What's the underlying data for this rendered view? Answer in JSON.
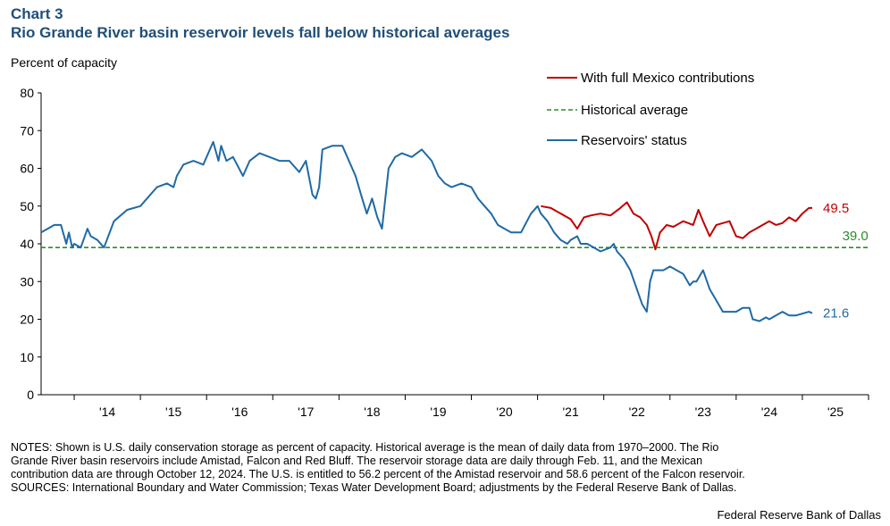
{
  "header": {
    "chart_number": "Chart 3",
    "title": "Rio Grande River basin reservoir levels fall below historical averages"
  },
  "chart_data": {
    "type": "line",
    "ylabel": "Percent of capacity",
    "ylim": [
      0,
      80
    ],
    "yticks": [
      0,
      10,
      20,
      30,
      40,
      50,
      60,
      70,
      80
    ],
    "xlim": [
      2013.0,
      2025.5
    ],
    "xtick_labels": [
      "'14",
      "'15",
      "'16",
      "'17",
      "'18",
      "'19",
      "'20",
      "'21",
      "'22",
      "'23",
      "'24",
      "'25"
    ],
    "grid": false,
    "legend_placement": "top-right",
    "series": [
      {
        "name": "With full Mexico contributions",
        "color": "#c00000",
        "style": "solid",
        "end_label": "49.5",
        "x": [
          2020.55,
          2020.7,
          2020.8,
          2020.9,
          2021.0,
          2021.1,
          2021.2,
          2021.3,
          2021.45,
          2021.6,
          2021.75,
          2021.85,
          2021.95,
          2022.05,
          2022.15,
          2022.22,
          2022.28,
          2022.35,
          2022.45,
          2022.55,
          2022.7,
          2022.85,
          2022.93,
          2023.0,
          2023.1,
          2023.2,
          2023.3,
          2023.4,
          2023.5,
          2023.6,
          2023.7,
          2023.8,
          2023.9,
          2024.0,
          2024.1,
          2024.2,
          2024.3,
          2024.4,
          2024.5,
          2024.6,
          2024.65
        ],
        "y": [
          50,
          49.5,
          48.5,
          47.5,
          46.5,
          44,
          47,
          47.5,
          48,
          47.5,
          49.5,
          51,
          48,
          47,
          45,
          42,
          38.5,
          43,
          45,
          44.5,
          46,
          45,
          49,
          46,
          42,
          45,
          45.5,
          46,
          42,
          41.5,
          43,
          44,
          45,
          46,
          45,
          45.5,
          47,
          46,
          48,
          49.5,
          49.5
        ]
      },
      {
        "name": "Historical average",
        "color": "#2e8b2e",
        "style": "dashed",
        "end_label": "39.0",
        "x": [
          2013.0,
          2025.5
        ],
        "y": [
          39.0,
          39.0
        ]
      },
      {
        "name": "Reservoirs' status",
        "color": "#1f6aa5",
        "style": "solid",
        "end_label": "21.6",
        "x": [
          2013.0,
          2013.1,
          2013.2,
          2013.3,
          2013.38,
          2013.42,
          2013.47,
          2013.5,
          2013.6,
          2013.7,
          2013.75,
          2013.85,
          2013.95,
          2014.1,
          2014.3,
          2014.5,
          2014.6,
          2014.75,
          2014.9,
          2015.0,
          2015.05,
          2015.15,
          2015.3,
          2015.45,
          2015.6,
          2015.68,
          2015.72,
          2015.8,
          2015.9,
          2016.05,
          2016.15,
          2016.3,
          2016.45,
          2016.6,
          2016.75,
          2016.9,
          2017.0,
          2017.1,
          2017.15,
          2017.2,
          2017.25,
          2017.4,
          2017.55,
          2017.65,
          2017.75,
          2017.85,
          2017.92,
          2018.0,
          2018.08,
          2018.15,
          2018.25,
          2018.35,
          2018.45,
          2018.6,
          2018.75,
          2018.9,
          2019.0,
          2019.1,
          2019.2,
          2019.35,
          2019.5,
          2019.6,
          2019.7,
          2019.8,
          2019.9,
          2020.0,
          2020.1,
          2020.25,
          2020.4,
          2020.5,
          2020.55,
          2020.65,
          2020.75,
          2020.85,
          2020.95,
          2021.0,
          2021.1,
          2021.15,
          2021.25,
          2021.35,
          2021.45,
          2021.6,
          2021.65,
          2021.7,
          2021.8,
          2021.9,
          2022.0,
          2022.08,
          2022.15,
          2022.2,
          2022.25,
          2022.3,
          2022.4,
          2022.5,
          2022.6,
          2022.7,
          2022.8,
          2022.85,
          2022.9,
          2023.0,
          2023.1,
          2023.2,
          2023.3,
          2023.4,
          2023.5,
          2023.6,
          2023.7,
          2023.75,
          2023.85,
          2023.95,
          2024.0,
          2024.1,
          2024.2,
          2024.3,
          2024.4,
          2024.5,
          2024.6,
          2024.65
        ],
        "y": [
          43,
          44,
          45,
          45,
          40,
          43,
          39,
          40,
          39,
          44,
          42,
          41,
          39,
          46,
          49,
          50,
          52,
          55,
          56,
          55,
          58,
          61,
          62,
          61,
          67,
          62,
          66,
          62,
          63,
          58,
          62,
          64,
          63,
          62,
          62,
          59,
          62,
          53,
          52,
          55,
          65,
          66,
          66,
          62,
          58,
          52,
          48,
          52,
          47,
          44,
          60,
          63,
          64,
          63,
          65,
          62,
          58,
          56,
          55,
          56,
          55,
          52,
          50,
          48,
          45,
          44,
          43,
          43,
          48,
          50,
          48,
          46,
          43,
          41,
          40,
          41,
          42,
          40,
          40,
          39,
          38,
          39,
          40,
          38,
          36,
          33,
          28,
          24,
          22,
          30,
          33,
          33,
          33,
          34,
          33,
          32,
          29,
          30,
          30,
          33,
          28,
          25,
          22,
          22,
          22,
          23,
          23,
          20,
          19.5,
          20.5,
          20,
          21,
          22,
          21,
          21,
          21.5,
          22,
          21.6
        ]
      }
    ]
  },
  "notes": {
    "lines": [
      "NOTES: Shown is U.S. daily conservation storage as percent of capacity. Historical average is the mean of daily data from 1970–2000. The Rio",
      "Grande River basin reservoirs include Amistad, Falcon and Red Bluff. The reservoir storage data are daily through Feb. 11, and the Mexican",
      "contribution data are through October 12, 2024. The U.S. is entitled to 56.2 percent of the Amistad reservoir and 58.6 percent of the Falcon reservoir.",
      "SOURCES: International Boundary and Water Commission; Texas Water Development Board; adjustments by the Federal Reserve Bank of Dallas."
    ]
  },
  "footer": {
    "source_org": "Federal Reserve Bank of Dallas"
  }
}
